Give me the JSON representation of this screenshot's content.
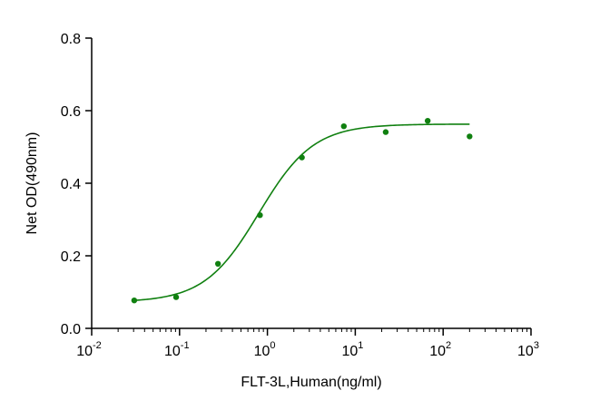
{
  "chart_data": {
    "type": "scatter",
    "title": "",
    "xlabel": "FLT-3L,Human(ng/ml)",
    "ylabel": "Net OD(490nm)",
    "x_scale": "log",
    "xlim": [
      0.01,
      1000
    ],
    "ylim": [
      0.0,
      0.8
    ],
    "x_ticks": [
      {
        "value": 0.01,
        "base": "10",
        "exp": "-2"
      },
      {
        "value": 0.1,
        "base": "10",
        "exp": "-1"
      },
      {
        "value": 1,
        "base": "10",
        "exp": "0"
      },
      {
        "value": 10,
        "base": "10",
        "exp": "1"
      },
      {
        "value": 100,
        "base": "10",
        "exp": "2"
      },
      {
        "value": 1000,
        "base": "10",
        "exp": "3"
      }
    ],
    "y_ticks": [
      {
        "value": 0.0,
        "label": "0.0"
      },
      {
        "value": 0.2,
        "label": "0.2"
      },
      {
        "value": 0.4,
        "label": "0.4"
      },
      {
        "value": 0.6,
        "label": "0.6"
      },
      {
        "value": 0.8,
        "label": "0.8"
      }
    ],
    "grid": false,
    "color": "#108010",
    "series": [
      {
        "x": [
          0.0305,
          0.0914,
          0.274,
          0.823,
          2.47,
          7.41,
          22.2,
          66.7,
          200
        ],
        "y": [
          0.077,
          0.086,
          0.178,
          0.312,
          0.471,
          0.557,
          0.541,
          0.572,
          0.529
        ]
      }
    ],
    "fit_curve": {
      "bottom": 0.072,
      "top": 0.563,
      "ec50": 0.8,
      "hill": 1.4,
      "x_range": [
        0.0305,
        200
      ]
    }
  }
}
